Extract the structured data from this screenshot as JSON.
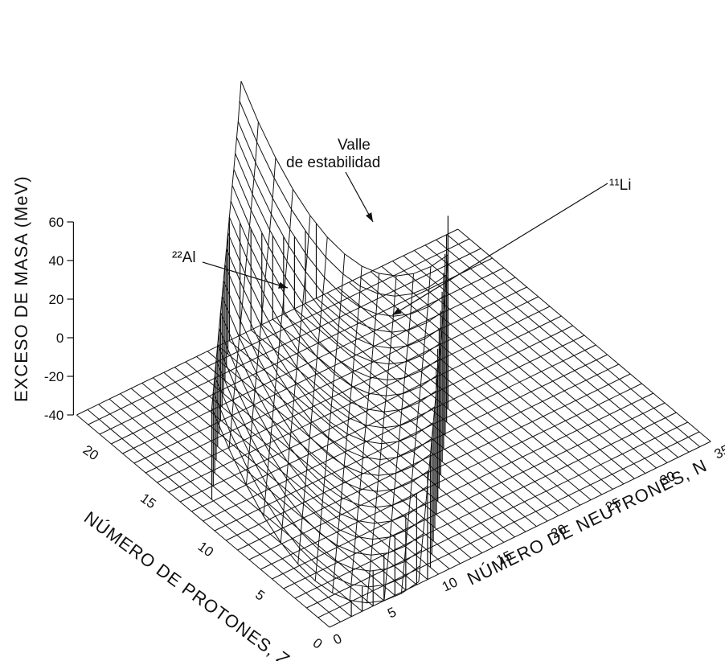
{
  "chart_data": {
    "type": "surface3d",
    "zlabel": "EXCESO DE MASA (MeV)",
    "xlabel": "NÚMERO DE NEUTRONES, N",
    "ylabel": "NÚMERO DE PROTONES, Z",
    "z_ticks": [
      "60",
      "40",
      "20",
      "0",
      "-20",
      "-40"
    ],
    "n_ticks": [
      "0",
      "5",
      "10",
      "15",
      "20",
      "25",
      "30",
      "35"
    ],
    "z_axis_ticks": [
      "0",
      "5",
      "10",
      "15",
      "20"
    ],
    "zlim": [
      -40,
      60
    ],
    "nlim": [
      0,
      35
    ],
    "plim": [
      0,
      22
    ],
    "annotations": {
      "valley": [
        "Valle",
        "de estabilidad"
      ],
      "al22": "²²Al",
      "li11": "¹¹Li"
    }
  }
}
